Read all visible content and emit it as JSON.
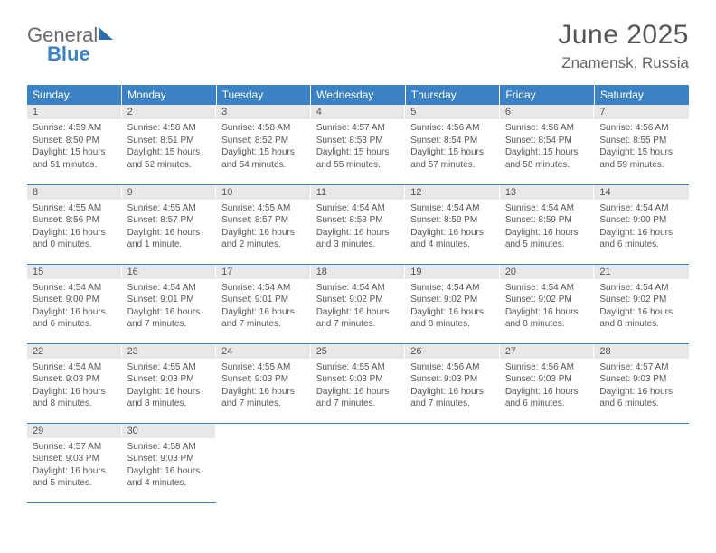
{
  "logo": {
    "line1": "General",
    "line2": "Blue"
  },
  "title": "June 2025",
  "location": "Znamensk, Russia",
  "colors": {
    "header_bg": "#3b82c4",
    "header_text": "#ffffff",
    "daynum_bg": "#e8e8e8",
    "rule": "#3b82c4",
    "body_text": "#555555"
  },
  "typography": {
    "title_fontsize": 30,
    "location_fontsize": 17,
    "dayheader_fontsize": 12,
    "daynum_fontsize": 11,
    "cell_fontsize": 10
  },
  "day_headers": [
    "Sunday",
    "Monday",
    "Tuesday",
    "Wednesday",
    "Thursday",
    "Friday",
    "Saturday"
  ],
  "weeks": [
    [
      {
        "n": "1",
        "sunrise": "Sunrise: 4:59 AM",
        "sunset": "Sunset: 8:50 PM",
        "daylight": "Daylight: 15 hours and 51 minutes."
      },
      {
        "n": "2",
        "sunrise": "Sunrise: 4:58 AM",
        "sunset": "Sunset: 8:51 PM",
        "daylight": "Daylight: 15 hours and 52 minutes."
      },
      {
        "n": "3",
        "sunrise": "Sunrise: 4:58 AM",
        "sunset": "Sunset: 8:52 PM",
        "daylight": "Daylight: 15 hours and 54 minutes."
      },
      {
        "n": "4",
        "sunrise": "Sunrise: 4:57 AM",
        "sunset": "Sunset: 8:53 PM",
        "daylight": "Daylight: 15 hours and 55 minutes."
      },
      {
        "n": "5",
        "sunrise": "Sunrise: 4:56 AM",
        "sunset": "Sunset: 8:54 PM",
        "daylight": "Daylight: 15 hours and 57 minutes."
      },
      {
        "n": "6",
        "sunrise": "Sunrise: 4:56 AM",
        "sunset": "Sunset: 8:54 PM",
        "daylight": "Daylight: 15 hours and 58 minutes."
      },
      {
        "n": "7",
        "sunrise": "Sunrise: 4:56 AM",
        "sunset": "Sunset: 8:55 PM",
        "daylight": "Daylight: 15 hours and 59 minutes."
      }
    ],
    [
      {
        "n": "8",
        "sunrise": "Sunrise: 4:55 AM",
        "sunset": "Sunset: 8:56 PM",
        "daylight": "Daylight: 16 hours and 0 minutes."
      },
      {
        "n": "9",
        "sunrise": "Sunrise: 4:55 AM",
        "sunset": "Sunset: 8:57 PM",
        "daylight": "Daylight: 16 hours and 1 minute."
      },
      {
        "n": "10",
        "sunrise": "Sunrise: 4:55 AM",
        "sunset": "Sunset: 8:57 PM",
        "daylight": "Daylight: 16 hours and 2 minutes."
      },
      {
        "n": "11",
        "sunrise": "Sunrise: 4:54 AM",
        "sunset": "Sunset: 8:58 PM",
        "daylight": "Daylight: 16 hours and 3 minutes."
      },
      {
        "n": "12",
        "sunrise": "Sunrise: 4:54 AM",
        "sunset": "Sunset: 8:59 PM",
        "daylight": "Daylight: 16 hours and 4 minutes."
      },
      {
        "n": "13",
        "sunrise": "Sunrise: 4:54 AM",
        "sunset": "Sunset: 8:59 PM",
        "daylight": "Daylight: 16 hours and 5 minutes."
      },
      {
        "n": "14",
        "sunrise": "Sunrise: 4:54 AM",
        "sunset": "Sunset: 9:00 PM",
        "daylight": "Daylight: 16 hours and 6 minutes."
      }
    ],
    [
      {
        "n": "15",
        "sunrise": "Sunrise: 4:54 AM",
        "sunset": "Sunset: 9:00 PM",
        "daylight": "Daylight: 16 hours and 6 minutes."
      },
      {
        "n": "16",
        "sunrise": "Sunrise: 4:54 AM",
        "sunset": "Sunset: 9:01 PM",
        "daylight": "Daylight: 16 hours and 7 minutes."
      },
      {
        "n": "17",
        "sunrise": "Sunrise: 4:54 AM",
        "sunset": "Sunset: 9:01 PM",
        "daylight": "Daylight: 16 hours and 7 minutes."
      },
      {
        "n": "18",
        "sunrise": "Sunrise: 4:54 AM",
        "sunset": "Sunset: 9:02 PM",
        "daylight": "Daylight: 16 hours and 7 minutes."
      },
      {
        "n": "19",
        "sunrise": "Sunrise: 4:54 AM",
        "sunset": "Sunset: 9:02 PM",
        "daylight": "Daylight: 16 hours and 8 minutes."
      },
      {
        "n": "20",
        "sunrise": "Sunrise: 4:54 AM",
        "sunset": "Sunset: 9:02 PM",
        "daylight": "Daylight: 16 hours and 8 minutes."
      },
      {
        "n": "21",
        "sunrise": "Sunrise: 4:54 AM",
        "sunset": "Sunset: 9:02 PM",
        "daylight": "Daylight: 16 hours and 8 minutes."
      }
    ],
    [
      {
        "n": "22",
        "sunrise": "Sunrise: 4:54 AM",
        "sunset": "Sunset: 9:03 PM",
        "daylight": "Daylight: 16 hours and 8 minutes."
      },
      {
        "n": "23",
        "sunrise": "Sunrise: 4:55 AM",
        "sunset": "Sunset: 9:03 PM",
        "daylight": "Daylight: 16 hours and 8 minutes."
      },
      {
        "n": "24",
        "sunrise": "Sunrise: 4:55 AM",
        "sunset": "Sunset: 9:03 PM",
        "daylight": "Daylight: 16 hours and 7 minutes."
      },
      {
        "n": "25",
        "sunrise": "Sunrise: 4:55 AM",
        "sunset": "Sunset: 9:03 PM",
        "daylight": "Daylight: 16 hours and 7 minutes."
      },
      {
        "n": "26",
        "sunrise": "Sunrise: 4:56 AM",
        "sunset": "Sunset: 9:03 PM",
        "daylight": "Daylight: 16 hours and 7 minutes."
      },
      {
        "n": "27",
        "sunrise": "Sunrise: 4:56 AM",
        "sunset": "Sunset: 9:03 PM",
        "daylight": "Daylight: 16 hours and 6 minutes."
      },
      {
        "n": "28",
        "sunrise": "Sunrise: 4:57 AM",
        "sunset": "Sunset: 9:03 PM",
        "daylight": "Daylight: 16 hours and 6 minutes."
      }
    ],
    [
      {
        "n": "29",
        "sunrise": "Sunrise: 4:57 AM",
        "sunset": "Sunset: 9:03 PM",
        "daylight": "Daylight: 16 hours and 5 minutes."
      },
      {
        "n": "30",
        "sunrise": "Sunrise: 4:58 AM",
        "sunset": "Sunset: 9:03 PM",
        "daylight": "Daylight: 16 hours and 4 minutes."
      },
      null,
      null,
      null,
      null,
      null
    ]
  ]
}
